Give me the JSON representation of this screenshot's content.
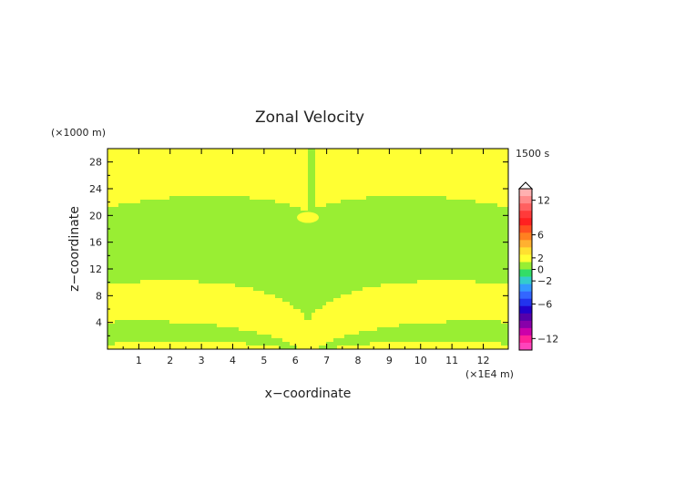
{
  "chart_data": {
    "type": "heatmap",
    "title": "Zonal Velocity",
    "xlabel": "x−coordinate",
    "ylabel": "z−coordinate",
    "x_unit": "(×1E4 m)",
    "y_unit": "(×1000 m)",
    "time_label": "1500 s",
    "x_range": [
      0,
      12.8
    ],
    "y_range": [
      0,
      30
    ],
    "x_ticks": [
      "1",
      "2",
      "3",
      "4",
      "5",
      "6",
      "7",
      "8",
      "9",
      "10",
      "11",
      "12"
    ],
    "y_ticks": [
      "4",
      "8",
      "12",
      "16",
      "20",
      "24",
      "28"
    ],
    "field": {
      "center_x": 6.4,
      "band_colors": [
        "#ffff33",
        "#99ee33"
      ],
      "note": "alternating bands of near-zero velocity (0 to 2 yellow, -2 to 0 green) radiating upward from a source at x=6.4"
    },
    "colorbar": {
      "labels": [
        "12",
        "6",
        "2",
        "0",
        "−2",
        "−6",
        "−12"
      ],
      "levels": [
        12,
        6,
        2,
        0,
        -2,
        -6,
        -12
      ],
      "colors": [
        "#ffb0b0",
        "#ff8a8a",
        "#ff6060",
        "#ff3a3a",
        "#ff2020",
        "#ff5020",
        "#ff8020",
        "#ffb030",
        "#ffe030",
        "#ffff33",
        "#99ee33",
        "#33dd66",
        "#33cccc",
        "#3399ff",
        "#3366ff",
        "#2233ee",
        "#2200cc",
        "#5500aa",
        "#8800aa",
        "#cc00aa",
        "#ff2299",
        "#ff44bb"
      ]
    }
  }
}
